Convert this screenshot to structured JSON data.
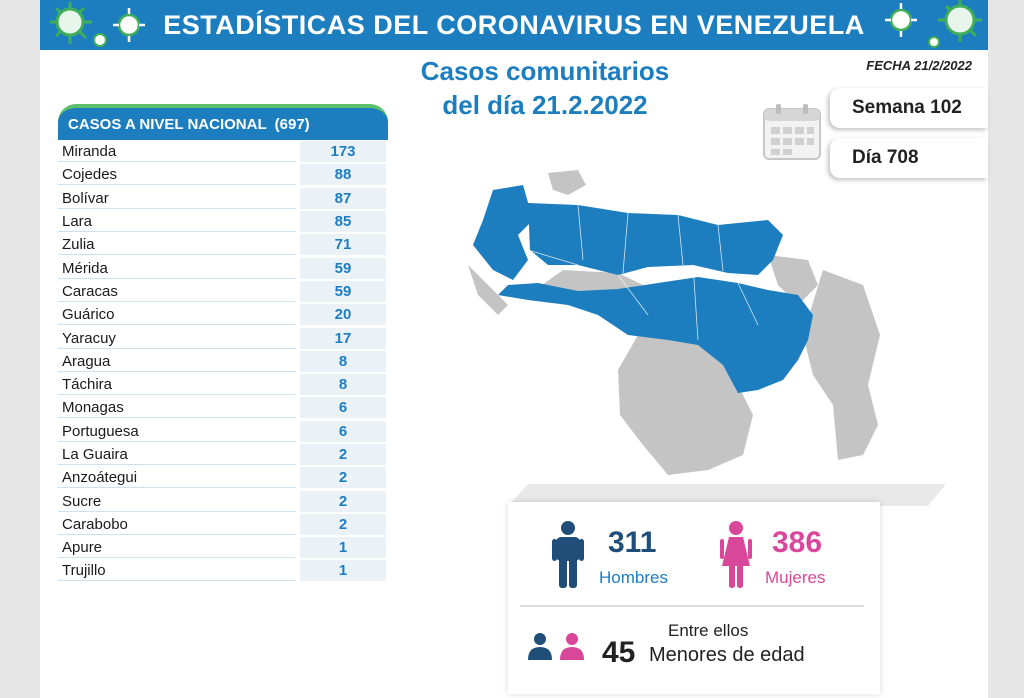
{
  "banner": {
    "title": "ESTADÍSTICAS DEL CORONAVIRUS EN VENEZUELA",
    "color": "#1d7ebf",
    "decor_icon": "virus-icon",
    "decor_color": "#3fae5a"
  },
  "headline": {
    "line1": "Casos comunitarios",
    "line2": "del día 21.2.2022"
  },
  "fecha": "FECHA 21/2/2022",
  "calendar_icon": "calendar-icon",
  "semana": "Semana 102",
  "dia": "Día 708",
  "table": {
    "title": "CASOS A NIVEL NACIONAL",
    "total": "(697)",
    "accent": "#5cc06a",
    "rows": [
      {
        "name": "Miranda",
        "value": "173"
      },
      {
        "name": "Cojedes",
        "value": "88"
      },
      {
        "name": "Bolívar",
        "value": "87"
      },
      {
        "name": "Lara",
        "value": "85"
      },
      {
        "name": "Zulia",
        "value": "71"
      },
      {
        "name": "Mérida",
        "value": "59"
      },
      {
        "name": "Caracas",
        "value": "59"
      },
      {
        "name": "Guárico",
        "value": "20"
      },
      {
        "name": "Yaracuy",
        "value": "17"
      },
      {
        "name": "Aragua",
        "value": "8"
      },
      {
        "name": "Táchira",
        "value": "8"
      },
      {
        "name": "Monagas",
        "value": "6"
      },
      {
        "name": "Portuguesa",
        "value": "6"
      },
      {
        "name": "La Guaira",
        "value": "2"
      },
      {
        "name": "Anzoátegui",
        "value": "2"
      },
      {
        "name": "Sucre",
        "value": "2"
      },
      {
        "name": "Carabobo",
        "value": "2"
      },
      {
        "name": "Apure",
        "value": "1"
      },
      {
        "name": "Trujillo",
        "value": "1"
      }
    ]
  },
  "map": {
    "icon": "venezuela-map",
    "affected_color": "#1d7ebf",
    "unaffected_color": "#c4c4c4"
  },
  "stats": {
    "men": {
      "value": "311",
      "label": "Hombres",
      "color": "#1f4e79",
      "icon": "man-icon"
    },
    "women": {
      "value": "386",
      "label": "Mujeres",
      "color": "#d9479b",
      "icon": "woman-icon"
    },
    "minors_intro": "Entre ellos",
    "minors_value": "45",
    "minors_label": "Menores de edad"
  }
}
